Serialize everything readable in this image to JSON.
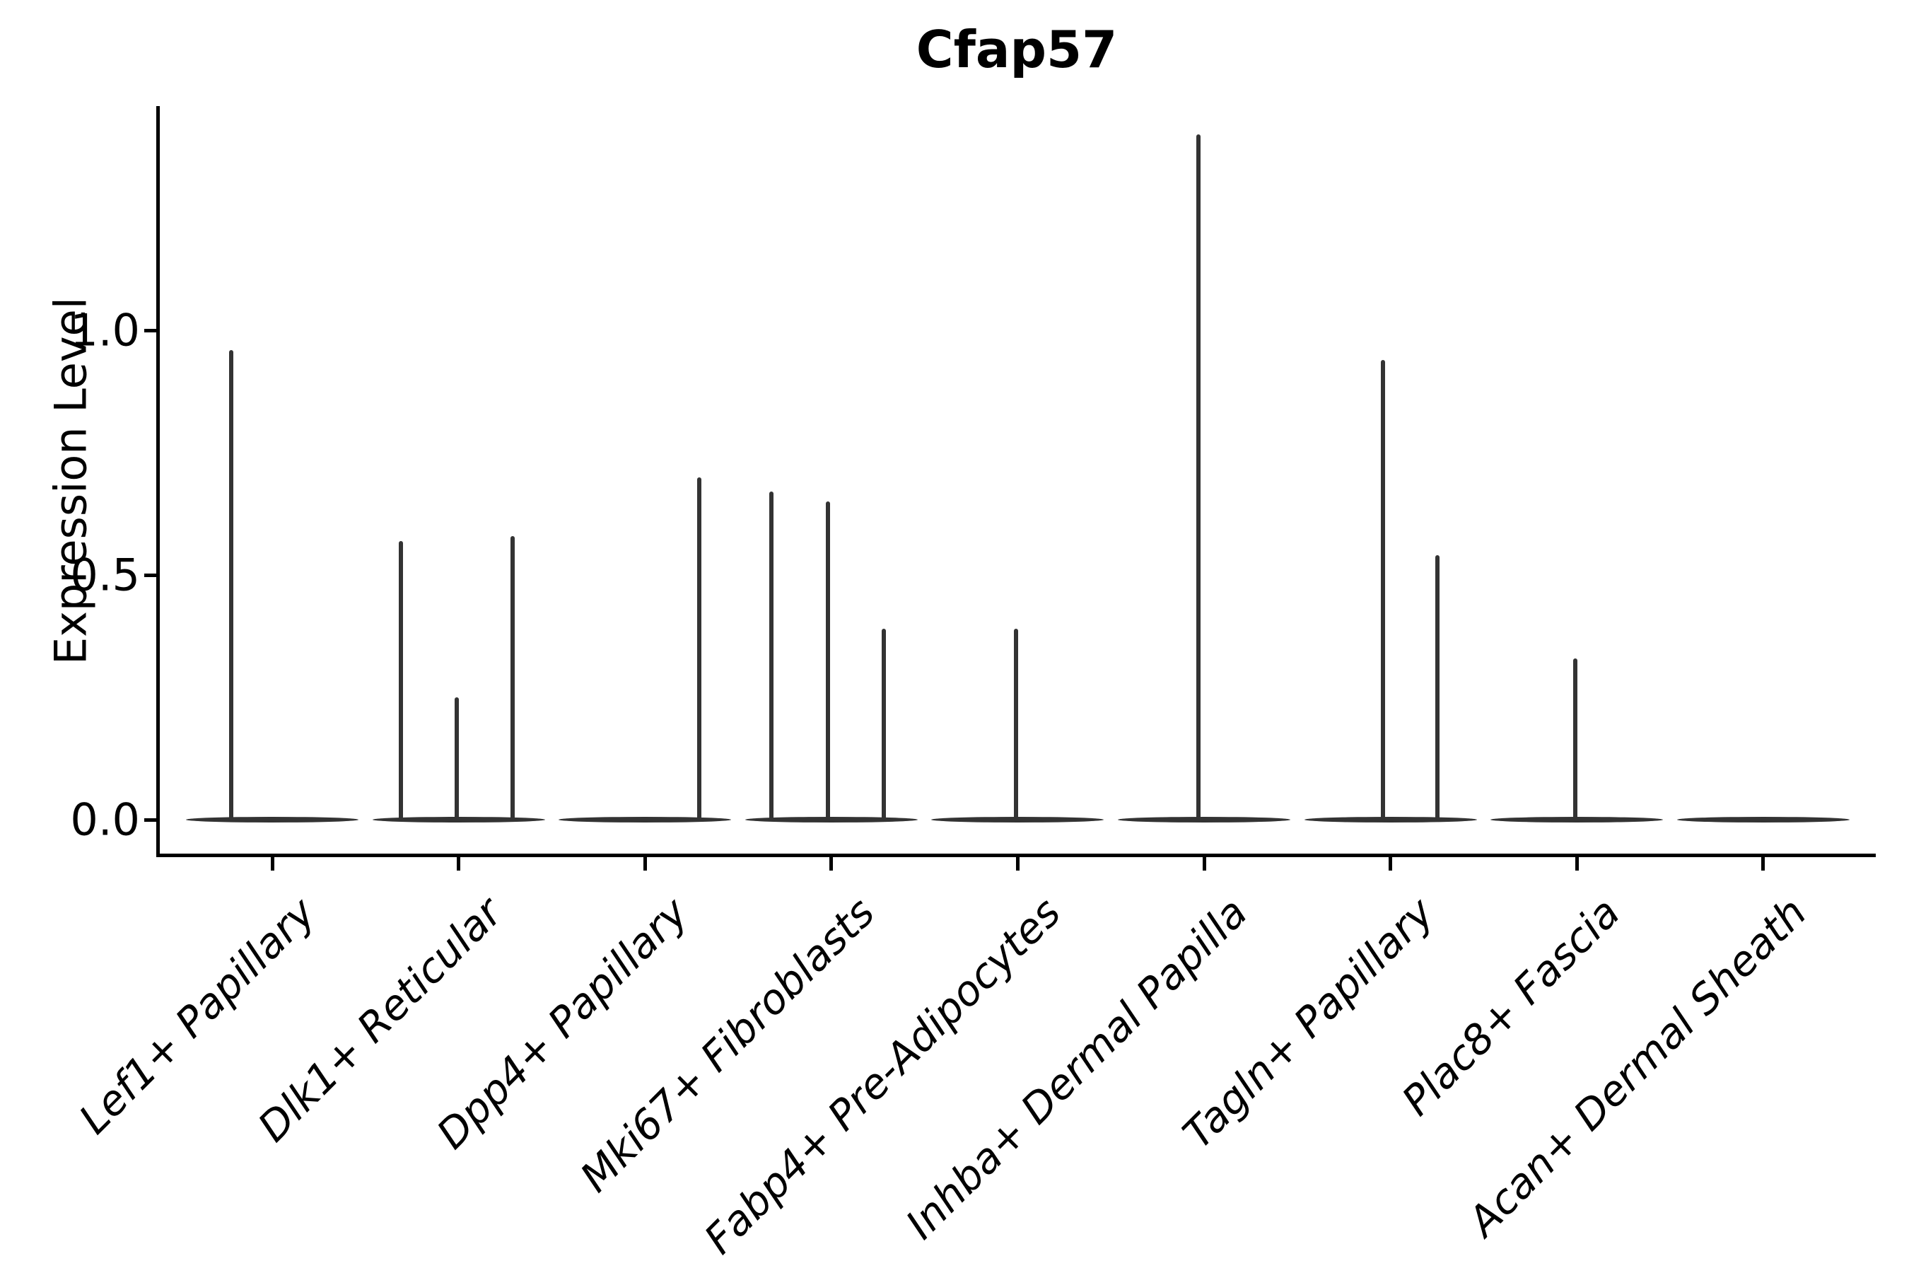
{
  "title": "Cfap57",
  "chart_data": {
    "type": "violin",
    "title": "Cfap57",
    "xlabel": "",
    "ylabel": "Expression Level",
    "ylim": [
      -0.07,
      1.46
    ],
    "y_ticks": [
      0.0,
      0.5,
      1.0
    ],
    "y_tick_labels": [
      "0.0",
      "0.5",
      "1.0"
    ],
    "grid": false,
    "legend": null,
    "categories": [
      "Lef1+ Papillary",
      "Dlk1+ Reticular",
      "Dpp4+ Papillary",
      "Mki67+ Fibroblasts",
      "Fabp4+ Pre-Adipocytes",
      "Inhba+ Dermal Papilla",
      "Tagln+ Papillary",
      "Plac8+ Fascia",
      "Acan+ Dermal Sheath"
    ],
    "description": "Each category shows a flat violin body at expression 0 with thin vertical spikes up to the maximum expressed values; offsets are in category-width units relative to the category center.",
    "spikes_by_category": [
      [
        {
          "offset_units": -0.22,
          "value": 0.96
        }
      ],
      [
        {
          "offset_units": -0.31,
          "value": 0.57
        },
        {
          "offset_units": -0.01,
          "value": 0.25
        },
        {
          "offset_units": 0.29,
          "value": 0.58
        }
      ],
      [
        {
          "offset_units": 0.29,
          "value": 0.7
        }
      ],
      [
        {
          "offset_units": -0.32,
          "value": 0.67
        },
        {
          "offset_units": -0.02,
          "value": 0.65
        },
        {
          "offset_units": 0.28,
          "value": 0.39
        }
      ],
      [
        {
          "offset_units": -0.01,
          "value": 0.39
        }
      ],
      [
        {
          "offset_units": -0.03,
          "value": 1.4
        }
      ],
      [
        {
          "offset_units": -0.04,
          "value": 0.94
        },
        {
          "offset_units": 0.25,
          "value": 0.54
        }
      ],
      [
        {
          "offset_units": -0.01,
          "value": 0.33
        }
      ],
      []
    ],
    "baseline_value": 0.0,
    "violin_color": "#333333",
    "axis_color": "#000000"
  }
}
